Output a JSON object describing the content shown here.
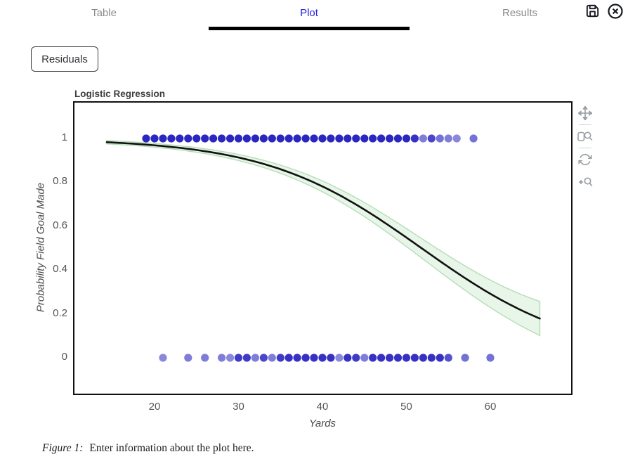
{
  "header": {
    "tabs": [
      {
        "label": "Table",
        "active": false
      },
      {
        "label": "Plot",
        "active": true
      },
      {
        "label": "Results",
        "active": false
      }
    ],
    "active_color": "#2222dd",
    "inactive_color": "#8a8a8a",
    "icons": [
      "save-icon",
      "close-icon"
    ]
  },
  "controls": {
    "residuals_label": "Residuals"
  },
  "chart_data": {
    "type": "scatter",
    "title": "Logistic Regression",
    "xlabel": "Yards",
    "ylabel": "Probability Field Goal Made",
    "xlim": [
      10.3,
      69.8
    ],
    "ylim": [
      -0.17,
      1.17
    ],
    "x_ticks": [
      20,
      30,
      40,
      50,
      60
    ],
    "y_ticks": [
      0,
      0.2,
      0.4,
      0.6,
      0.8,
      1
    ],
    "grid": false,
    "legend": "none",
    "curve": {
      "type": "logistic",
      "b0": 5.594,
      "b1": -0.108,
      "x_start": 14.3,
      "x_end": 65.9
    },
    "band": {
      "base": 0.008,
      "coef": 2.7e-05,
      "x0": 15
    },
    "series": [
      {
        "name": "made",
        "y": 1,
        "points": [
          [
            19,
            1
          ],
          [
            20,
            1
          ],
          [
            21,
            1
          ],
          [
            22,
            1
          ],
          [
            23,
            1
          ],
          [
            24,
            1
          ],
          [
            25,
            1
          ],
          [
            26,
            1
          ],
          [
            27,
            1
          ],
          [
            28,
            1
          ],
          [
            29,
            1
          ],
          [
            30,
            1
          ],
          [
            31,
            1
          ],
          [
            32,
            1
          ],
          [
            33,
            1
          ],
          [
            34,
            1
          ],
          [
            35,
            1
          ],
          [
            36,
            1
          ],
          [
            37,
            1
          ],
          [
            38,
            1
          ],
          [
            39,
            1
          ],
          [
            40,
            1
          ],
          [
            41,
            1
          ],
          [
            42,
            1
          ],
          [
            43,
            1
          ],
          [
            44,
            1
          ],
          [
            45,
            1
          ],
          [
            46,
            1
          ],
          [
            47,
            1
          ],
          [
            48,
            1
          ],
          [
            49,
            1
          ],
          [
            50,
            1
          ],
          [
            51,
            0.95
          ],
          [
            52,
            0.6
          ],
          [
            53,
            0.85
          ],
          [
            54,
            0.65
          ],
          [
            55,
            0.6
          ],
          [
            56,
            0.55
          ],
          [
            58,
            0.65
          ]
        ]
      },
      {
        "name": "missed",
        "y": 0,
        "points": [
          [
            21,
            0.55
          ],
          [
            24,
            0.6
          ],
          [
            26,
            0.6
          ],
          [
            28,
            0.6
          ],
          [
            29,
            0.55
          ],
          [
            30,
            0.9
          ],
          [
            31,
            0.9
          ],
          [
            32,
            0.6
          ],
          [
            33,
            0.85
          ],
          [
            34,
            0.6
          ],
          [
            35,
            0.9
          ],
          [
            36,
            0.95
          ],
          [
            37,
            0.95
          ],
          [
            38,
            0.95
          ],
          [
            39,
            0.95
          ],
          [
            40,
            0.95
          ],
          [
            41,
            0.95
          ],
          [
            42,
            0.55
          ],
          [
            43,
            0.95
          ],
          [
            44,
            0.9
          ],
          [
            45,
            0.6
          ],
          [
            46,
            0.95
          ],
          [
            47,
            0.95
          ],
          [
            48,
            0.95
          ],
          [
            49,
            0.95
          ],
          [
            50,
            0.95
          ],
          [
            51,
            0.95
          ],
          [
            52,
            0.95
          ],
          [
            53,
            0.95
          ],
          [
            54,
            0.95
          ],
          [
            55,
            0.8
          ],
          [
            57,
            0.65
          ],
          [
            60,
            0.65
          ]
        ]
      }
    ],
    "colors": {
      "dot": "#2b26c0",
      "curve": "#111111",
      "band_fill": "rgba(129,199,132,0.18)",
      "band_edge": "rgba(129,199,132,0.55)"
    }
  },
  "toolbar": {
    "tools": [
      "pan",
      "box-zoom",
      "reset",
      "zoom-in"
    ]
  },
  "caption": {
    "prefix": "Figure 1:",
    "text": "Enter information about the plot here."
  }
}
